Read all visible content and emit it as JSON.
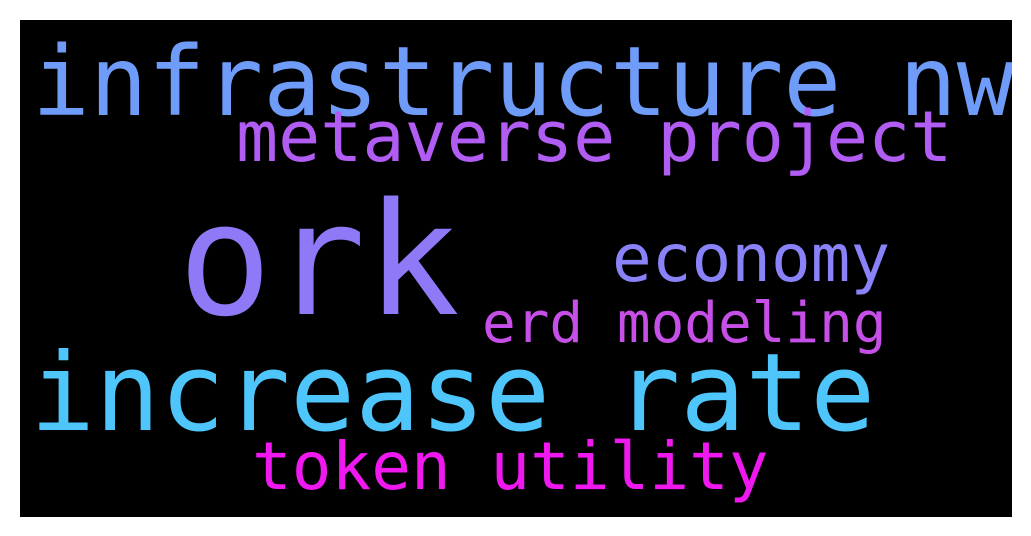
{
  "wordcloud": {
    "background_color": "#000000",
    "words": [
      {
        "id": "infrastructure",
        "text": "infrastructure nwo",
        "color": "#6f9cf8"
      },
      {
        "id": "metaverse",
        "text": "metaverse project",
        "color": "#b15cf2"
      },
      {
        "id": "ork",
        "text": "ork",
        "color": "#9079f7"
      },
      {
        "id": "economy",
        "text": "economy",
        "color": "#8a82f8"
      },
      {
        "id": "erd",
        "text": "erd modeling",
        "color": "#c64fe7"
      },
      {
        "id": "increase",
        "text": "increase rate",
        "color": "#4fc6fb"
      },
      {
        "id": "token",
        "text": "token utility",
        "color": "#ef19ef"
      }
    ]
  }
}
